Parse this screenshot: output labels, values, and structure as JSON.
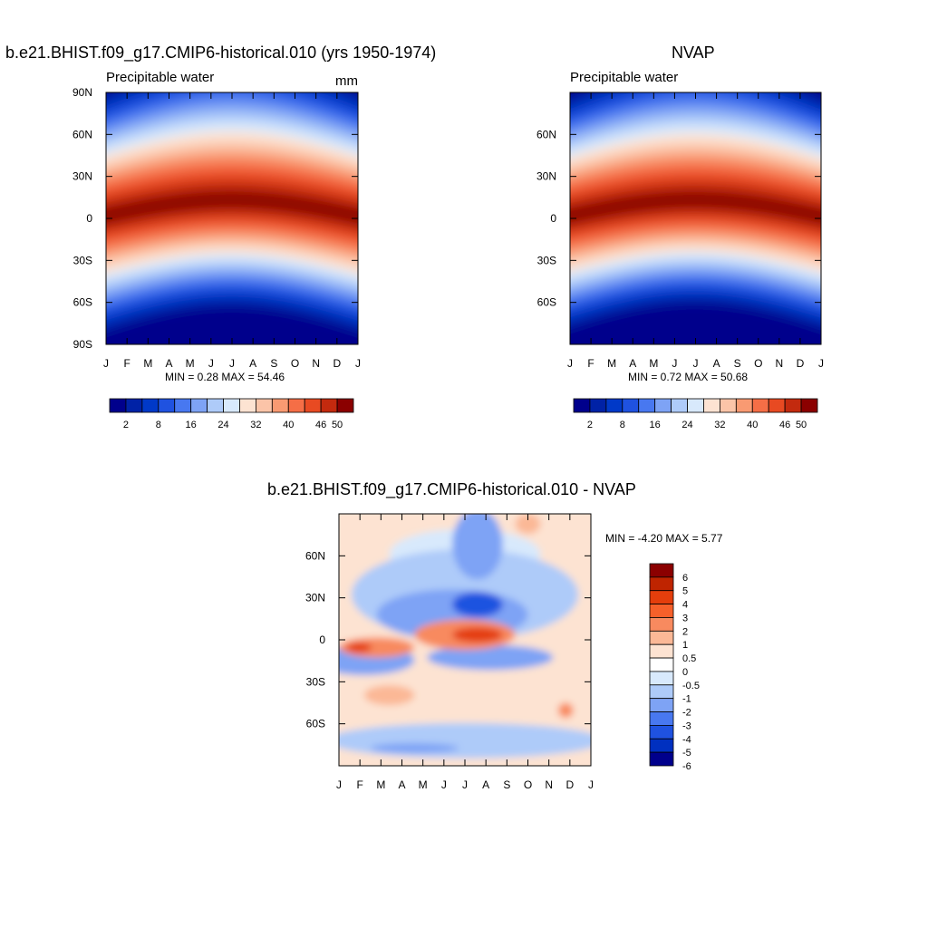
{
  "chart_data": [
    {
      "type": "heatmap",
      "title": "b.e21.BHIST.f09_g17.CMIP6-historical.010 (yrs 1950-1974)",
      "subtitle_left": "Precipitable water",
      "units": "mm",
      "x_ticks": [
        "J",
        "F",
        "M",
        "A",
        "M",
        "J",
        "J",
        "A",
        "S",
        "O",
        "N",
        "D",
        "J"
      ],
      "y_ticks": [
        "90N",
        "60N",
        "30N",
        "0",
        "30S",
        "60S",
        "90S"
      ],
      "stats": "MIN =   0.28 MAX =  54.46",
      "colorbar_labels": [
        "2",
        "8",
        "16",
        "24",
        "32",
        "40",
        "46",
        "50"
      ],
      "equator_peak_mm": 54.46,
      "min_mm": 0.28
    },
    {
      "type": "heatmap",
      "title": "NVAP",
      "subtitle_left": "Precipitable water",
      "x_ticks": [
        "J",
        "F",
        "M",
        "A",
        "M",
        "J",
        "J",
        "A",
        "S",
        "O",
        "N",
        "D",
        "J"
      ],
      "y_ticks": [
        "60N",
        "30N",
        "0",
        "30S",
        "60S"
      ],
      "stats": "MIN =   0.72 MAX =  50.68",
      "colorbar_labels": [
        "2",
        "8",
        "16",
        "24",
        "32",
        "40",
        "46",
        "50"
      ],
      "equator_peak_mm": 50.68,
      "min_mm": 0.72
    },
    {
      "type": "heatmap",
      "title": "b.e21.BHIST.f09_g17.CMIP6-historical.010 - NVAP",
      "x_ticks": [
        "J",
        "F",
        "M",
        "A",
        "M",
        "J",
        "J",
        "A",
        "S",
        "O",
        "N",
        "D",
        "J"
      ],
      "y_ticks": [
        "60N",
        "30N",
        "0",
        "30S",
        "60S"
      ],
      "stats": "MIN =  -4.20 MAX =   5.77",
      "colorbar_labels": [
        "6",
        "5",
        "4",
        "3",
        "2",
        "1",
        "0.5",
        "0",
        "-0.5",
        "-1",
        "-2",
        "-3",
        "-4",
        "-5",
        "-6"
      ]
    }
  ],
  "colors": {
    "seq_palette": [
      "#00008c",
      "#0022a6",
      "#0039c8",
      "#1f52e0",
      "#4878f0",
      "#7ea3f5",
      "#aecbf9",
      "#d8e9fc",
      "#fde3d2",
      "#fbc4a8",
      "#f99a72",
      "#f56e46",
      "#e84a22",
      "#c32a0e",
      "#8b0000"
    ],
    "div_palette": [
      "#8b0000",
      "#bf2400",
      "#e43e0c",
      "#f6602a",
      "#f88a5f",
      "#fbb896",
      "#fde3d2",
      "#ffffff",
      "#d8e9fc",
      "#aecbf9",
      "#7ea3f5",
      "#4878f0",
      "#1f52e0",
      "#0030c0",
      "#00008c"
    ]
  }
}
